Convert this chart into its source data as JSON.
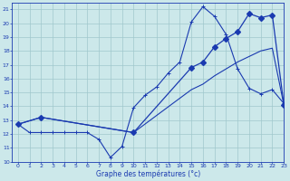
{
  "xlabel": "Graphe des températures (°c)",
  "bg_color": "#cce8ea",
  "line_color": "#1a3ab0",
  "grid_color": "#a0c8cc",
  "xlim": [
    -0.5,
    23
  ],
  "ylim": [
    10,
    21.5
  ],
  "yticks": [
    10,
    11,
    12,
    13,
    14,
    15,
    16,
    17,
    18,
    19,
    20,
    21
  ],
  "xticks": [
    0,
    1,
    2,
    3,
    4,
    5,
    6,
    7,
    8,
    9,
    10,
    11,
    12,
    13,
    14,
    15,
    16,
    17,
    18,
    19,
    20,
    21,
    22,
    23
  ],
  "line1_x": [
    0,
    1,
    2,
    3,
    4,
    5,
    6,
    7,
    8,
    9,
    10,
    11,
    12,
    13,
    14,
    15,
    16,
    17,
    18,
    19,
    20,
    21,
    22,
    23
  ],
  "line1_y": [
    12.7,
    12.1,
    12.1,
    12.1,
    12.1,
    12.1,
    12.1,
    11.6,
    10.3,
    11.1,
    13.9,
    14.8,
    15.4,
    16.4,
    17.2,
    20.1,
    21.2,
    20.5,
    19.2,
    16.7,
    15.3,
    14.9,
    15.2,
    14.2
  ],
  "line2_x": [
    0,
    2,
    10,
    15,
    16,
    17,
    18,
    19,
    20,
    21,
    22,
    23
  ],
  "line2_y": [
    12.7,
    13.2,
    12.1,
    16.8,
    17.2,
    18.3,
    18.9,
    19.4,
    20.7,
    20.4,
    20.6,
    14.1
  ],
  "line3_x": [
    0,
    2,
    10,
    15,
    16,
    17,
    18,
    19,
    20,
    21,
    22,
    23
  ],
  "line3_y": [
    12.7,
    13.2,
    12.1,
    15.2,
    15.6,
    16.2,
    16.7,
    17.2,
    17.6,
    18.0,
    18.2,
    14.1
  ]
}
